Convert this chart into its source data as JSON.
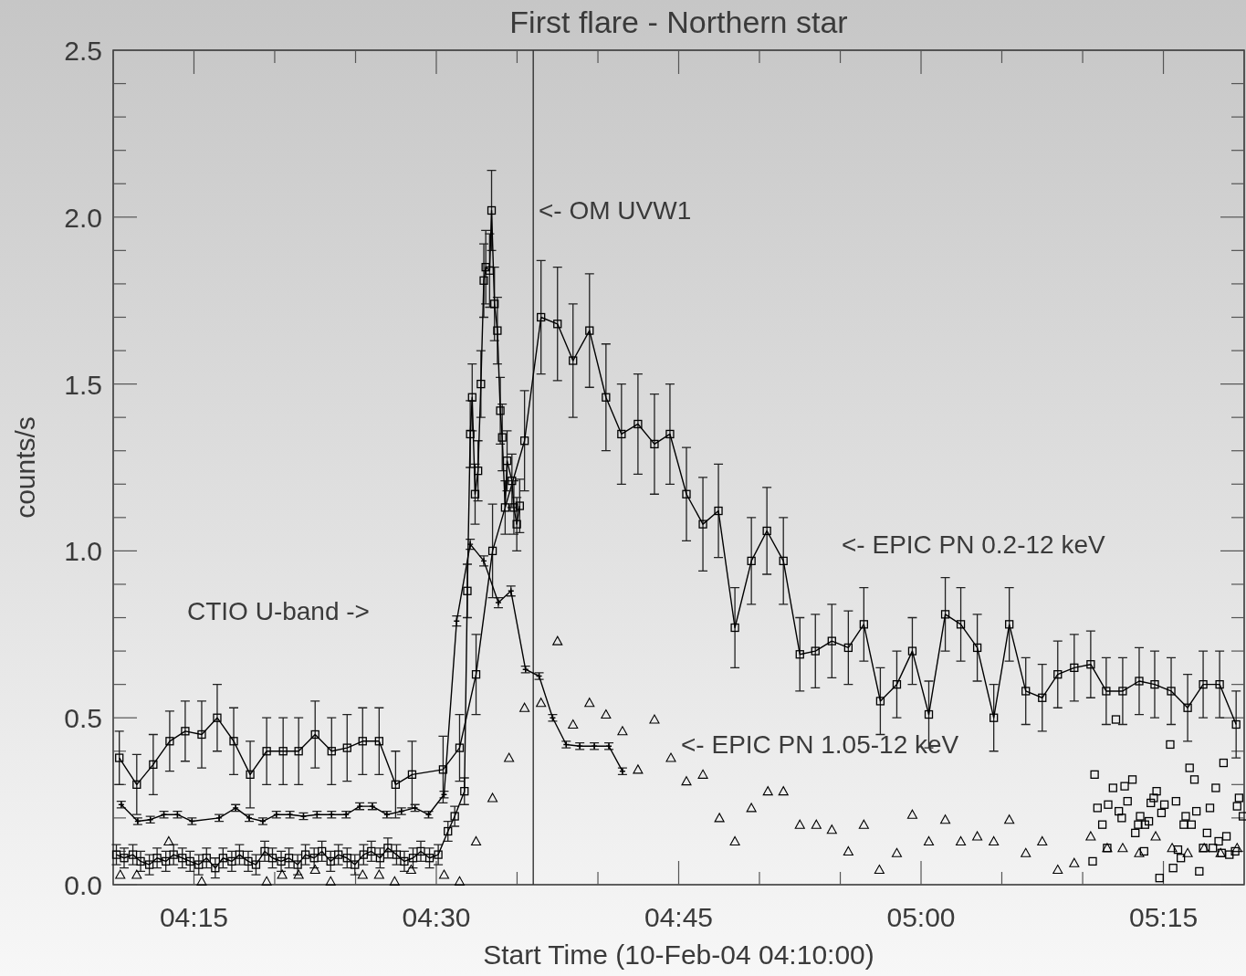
{
  "chart_data": {
    "type": "line",
    "title": "First flare - Northern star",
    "xlabel": "Start Time (10-Feb-04 04:10:00)",
    "ylabel": "counts/s",
    "xlim": [
      4.1667,
      5.3333
    ],
    "ylim": [
      0,
      2.5
    ],
    "xticks": [
      {
        "value": 4.25,
        "label": "04:15"
      },
      {
        "value": 4.5,
        "label": "04:30"
      },
      {
        "value": 4.75,
        "label": "04:45"
      },
      {
        "value": 5.0,
        "label": "05:00"
      },
      {
        "value": 5.25,
        "label": "05:15"
      },
      {
        "value": 4.3333,
        "label": null
      },
      {
        "value": 4.4167,
        "label": null
      },
      {
        "value": 4.5833,
        "label": null
      },
      {
        "value": 4.6667,
        "label": null
      },
      {
        "value": 4.8333,
        "label": null
      },
      {
        "value": 4.9167,
        "label": null
      },
      {
        "value": 5.0833,
        "label": null
      },
      {
        "value": 5.1667,
        "label": null
      }
    ],
    "yticks": [
      {
        "value": 0,
        "label": "0.0"
      },
      0.5,
      {
        "value": 1,
        "label": "1.0"
      },
      1.5,
      {
        "value": 2,
        "label": "2.0"
      },
      2.5,
      {
        "value": 0.1,
        "label": null
      },
      {
        "value": 0.2,
        "label": null
      },
      {
        "value": 0.3,
        "label": null
      },
      {
        "value": 0.4,
        "label": null
      },
      {
        "value": 0.6,
        "label": null
      },
      {
        "value": 0.7,
        "label": null
      },
      {
        "value": 0.8,
        "label": null
      },
      {
        "value": 0.9,
        "label": null
      },
      {
        "value": 1.1,
        "label": null
      },
      {
        "value": 1.2,
        "label": null
      },
      {
        "value": 1.3,
        "label": null
      },
      {
        "value": 1.4,
        "label": null
      },
      {
        "value": 1.6,
        "label": null
      },
      {
        "value": 1.7,
        "label": null
      },
      {
        "value": 1.8,
        "label": null
      },
      {
        "value": 1.9,
        "label": null
      },
      {
        "value": 2.1,
        "label": null
      },
      {
        "value": 2.2,
        "label": null
      },
      {
        "value": 2.3,
        "label": null
      },
      {
        "value": 2.4,
        "label": null
      }
    ],
    "grid": false,
    "ref_lines": [
      {
        "axis": "x",
        "value": 4.6,
        "label": null,
        "color": "#333333"
      }
    ],
    "annotations": [
      "<- OM UVW1",
      "<- EPIC PN 0.2-12 keV",
      "<- EPIC PN 1.05-12 keV",
      "CTIO U-band ->"
    ],
    "series": [
      {
        "type": "line",
        "marker": "square",
        "color": "#000000",
        "x": [
          4.173,
          4.191,
          4.208,
          4.225,
          4.241,
          4.258,
          4.274,
          4.291,
          4.308,
          4.325,
          4.342,
          4.358,
          4.375,
          4.392,
          4.408,
          4.424,
          4.441,
          4.458,
          4.475,
          4.507,
          4.524,
          4.541,
          4.558,
          4.591,
          4.608,
          4.625,
          4.641,
          4.658,
          4.675,
          4.691,
          4.708,
          4.725,
          4.741,
          4.758,
          4.775,
          4.791,
          4.808,
          4.825,
          4.841,
          4.858,
          4.875,
          4.891,
          4.908,
          4.925,
          4.941,
          4.958,
          4.975,
          4.991,
          5.008,
          5.025,
          5.041,
          5.058,
          5.075,
          5.091,
          5.108,
          5.125,
          5.141,
          5.158,
          5.175,
          5.191,
          5.208,
          5.225,
          5.241,
          5.258,
          5.275,
          5.291,
          5.308,
          5.325
        ],
        "values": [
          0.38,
          0.3,
          0.36,
          0.43,
          0.46,
          0.45,
          0.5,
          0.43,
          0.33,
          0.4,
          0.4,
          0.4,
          0.45,
          0.4,
          0.41,
          0.43,
          0.43,
          0.3,
          0.33,
          0.345,
          0.41,
          0.63,
          1.0,
          1.33,
          1.7,
          1.68,
          1.57,
          1.66,
          1.46,
          1.35,
          1.38,
          1.32,
          1.35,
          1.17,
          1.08,
          1.12,
          0.77,
          0.97,
          1.06,
          0.97,
          0.69,
          0.7,
          0.73,
          0.71,
          0.78,
          0.55,
          0.6,
          0.7,
          0.51,
          0.81,
          0.78,
          0.71,
          0.5,
          0.78,
          0.58,
          0.56,
          0.63,
          0.65,
          0.66,
          0.58,
          0.58,
          0.61,
          0.6,
          0.58,
          0.53,
          0.6,
          0.6,
          0.48
        ],
        "errors": [
          0.08,
          0.09,
          0.09,
          0.09,
          0.09,
          0.1,
          0.1,
          0.1,
          0.1,
          0.1,
          0.1,
          0.1,
          0.1,
          0.1,
          0.1,
          0.1,
          0.1,
          0.1,
          0.1,
          0.1,
          0.1,
          0.12,
          0.14,
          0.15,
          0.17,
          0.17,
          0.17,
          0.17,
          0.16,
          0.15,
          0.15,
          0.15,
          0.15,
          0.14,
          0.14,
          0.14,
          0.12,
          0.13,
          0.13,
          0.13,
          0.11,
          0.11,
          0.11,
          0.11,
          0.11,
          0.1,
          0.1,
          0.1,
          0.1,
          0.11,
          0.11,
          0.1,
          0.1,
          0.11,
          0.1,
          0.1,
          0.1,
          0.1,
          0.1,
          0.1,
          0.1,
          0.1,
          0.1,
          0.1,
          0.1,
          0.1,
          0.1,
          0.1
        ]
      },
      {
        "type": "line",
        "marker": "cross",
        "color": "#000000",
        "x": [
          4.175,
          4.192,
          4.205,
          4.219,
          4.233,
          4.248,
          4.276,
          4.293,
          4.307,
          4.321,
          4.335,
          4.349,
          4.363,
          4.377,
          4.392,
          4.407,
          4.421,
          4.434,
          4.449,
          4.464,
          4.478,
          4.492,
          4.508,
          4.521,
          4.535,
          4.549,
          4.564,
          4.577,
          4.592,
          4.606,
          4.62,
          4.634,
          4.648,
          4.663,
          4.678,
          4.692
        ],
        "values": [
          0.24,
          0.19,
          0.195,
          0.21,
          0.21,
          0.19,
          0.2,
          0.23,
          0.2,
          0.19,
          0.21,
          0.21,
          0.205,
          0.21,
          0.21,
          0.21,
          0.235,
          0.235,
          0.21,
          0.22,
          0.23,
          0.21,
          0.27,
          0.79,
          1.02,
          0.97,
          0.845,
          0.88,
          0.645,
          0.625,
          0.5,
          0.42,
          0.415,
          0.415,
          0.415,
          0.34
        ],
        "errors": [
          0.01,
          0.01,
          0.01,
          0.01,
          0.01,
          0.01,
          0.01,
          0.01,
          0.01,
          0.01,
          0.01,
          0.01,
          0.01,
          0.01,
          0.01,
          0.01,
          0.01,
          0.01,
          0.01,
          0.01,
          0.01,
          0.01,
          0.01,
          0.015,
          0.015,
          0.015,
          0.015,
          0.015,
          0.01,
          0.01,
          0.01,
          0.01,
          0.01,
          0.01,
          0.01,
          0.01
        ]
      },
      {
        "type": "line",
        "marker": "square",
        "color": "#000000",
        "x": [
          4.17,
          4.178,
          4.187,
          4.195,
          4.204,
          4.212,
          4.221,
          4.229,
          4.238,
          4.246,
          4.255,
          4.263,
          4.272,
          4.28,
          4.289,
          4.297,
          4.306,
          4.314,
          4.323,
          4.331,
          4.34,
          4.348,
          4.357,
          4.365,
          4.374,
          4.382,
          4.391,
          4.399,
          4.408,
          4.416,
          4.425,
          4.433,
          4.442,
          4.45,
          4.459,
          4.467,
          4.476,
          4.484,
          4.493,
          4.502,
          4.512,
          4.519,
          4.529,
          4.532,
          4.535,
          4.537,
          4.54,
          4.543,
          4.546,
          4.549,
          4.551,
          4.555,
          4.557,
          4.56,
          4.563,
          4.566,
          4.568,
          4.571,
          4.573,
          4.578,
          4.58,
          4.583,
          4.586
        ],
        "values": [
          0.09,
          0.08,
          0.09,
          0.07,
          0.06,
          0.08,
          0.07,
          0.09,
          0.08,
          0.07,
          0.06,
          0.08,
          0.05,
          0.08,
          0.07,
          0.09,
          0.07,
          0.06,
          0.1,
          0.08,
          0.07,
          0.08,
          0.06,
          0.09,
          0.08,
          0.1,
          0.07,
          0.09,
          0.08,
          0.06,
          0.09,
          0.1,
          0.08,
          0.11,
          0.09,
          0.07,
          0.08,
          0.1,
          0.08,
          0.09,
          0.16,
          0.205,
          0.28,
          0.88,
          1.35,
          1.46,
          1.17,
          1.24,
          1.5,
          1.81,
          1.85,
          1.84,
          2.02,
          1.74,
          1.66,
          1.42,
          1.34,
          1.13,
          1.27,
          1.21,
          1.13,
          1.08,
          1.135
        ],
        "errors": [
          0.03,
          0.03,
          0.03,
          0.03,
          0.03,
          0.03,
          0.03,
          0.03,
          0.03,
          0.03,
          0.03,
          0.03,
          0.03,
          0.03,
          0.03,
          0.03,
          0.03,
          0.03,
          0.03,
          0.03,
          0.03,
          0.03,
          0.03,
          0.03,
          0.03,
          0.03,
          0.03,
          0.03,
          0.03,
          0.03,
          0.03,
          0.03,
          0.03,
          0.03,
          0.03,
          0.03,
          0.03,
          0.03,
          0.03,
          0.03,
          0.03,
          0.03,
          0.04,
          0.08,
          0.1,
          0.1,
          0.09,
          0.09,
          0.1,
          0.11,
          0.11,
          0.11,
          0.12,
          0.11,
          0.1,
          0.1,
          0.1,
          0.08,
          0.09,
          0.08,
          0.08,
          0.08,
          0.08
        ]
      },
      {
        "type": "scatter",
        "marker": "square",
        "color": "#000000",
        "x": [
          5.179,
          5.198,
          5.21,
          5.218,
          5.182,
          5.193,
          5.204,
          5.207,
          5.213,
          5.187,
          5.192,
          5.177,
          5.221,
          5.226,
          5.224,
          5.231,
          5.235,
          5.23,
          5.237,
          5.24,
          5.243,
          5.251,
          5.248,
          5.263,
          5.257,
          5.277,
          5.282,
          5.273,
          5.271,
          5.279,
          5.284,
          5.265,
          5.268,
          5.26,
          5.246,
          5.295,
          5.298,
          5.304,
          5.312,
          5.291,
          5.301,
          5.307,
          5.315,
          5.31,
          5.318,
          5.287,
          5.324,
          5.326,
          5.328,
          5.332,
          5.201
        ],
        "values": [
          0.33,
          0.29,
          0.295,
          0.315,
          0.23,
          0.24,
          0.22,
          0.2,
          0.25,
          0.18,
          0.11,
          0.07,
          0.155,
          0.205,
          0.18,
          0.18,
          0.19,
          0.1,
          0.245,
          0.26,
          0.28,
          0.24,
          0.215,
          0.25,
          0.42,
          0.35,
          0.315,
          0.205,
          0.18,
          0.18,
          0.22,
          0.105,
          0.08,
          0.05,
          0.02,
          0.155,
          0.23,
          0.29,
          0.365,
          0.11,
          0.11,
          0.13,
          0.145,
          0.095,
          0.09,
          0.04,
          0.1,
          0.235,
          0.26,
          0.205,
          0.495
        ]
      },
      {
        "type": "scatter",
        "marker": "triangle",
        "color": "#000000",
        "x": [
          4.174,
          4.191,
          4.224,
          4.258,
          4.325,
          4.341,
          4.358,
          4.375,
          4.391,
          4.424,
          4.441,
          4.457,
          4.474,
          4.508,
          4.524,
          4.541,
          4.558,
          4.575,
          4.591,
          4.608,
          4.625,
          4.641,
          4.658,
          4.675,
          4.692,
          4.708,
          4.725,
          4.742,
          4.758,
          4.775,
          4.792,
          4.808,
          4.825,
          4.842,
          4.858,
          4.875,
          4.892,
          4.908,
          4.925,
          4.941,
          4.957,
          4.975,
          4.991,
          5.008,
          5.025,
          5.041,
          5.058,
          5.075,
          5.091,
          5.108,
          5.125,
          5.141,
          5.158,
          5.175,
          5.192,
          5.208,
          5.225,
          5.242,
          5.259,
          5.275,
          5.292,
          5.309,
          5.326
        ],
        "values": [
          0.03,
          0.03,
          0.13,
          0.01,
          0.01,
          0.03,
          0.03,
          0.045,
          0.01,
          0.03,
          0.03,
          0.01,
          0.045,
          0.03,
          0.01,
          0.13,
          0.26,
          0.38,
          0.53,
          0.545,
          0.73,
          0.48,
          0.545,
          0.51,
          0.46,
          0.345,
          0.495,
          0.38,
          0.31,
          0.33,
          0.2,
          0.13,
          0.23,
          0.28,
          0.28,
          0.18,
          0.18,
          0.165,
          0.1,
          0.18,
          0.045,
          0.095,
          0.21,
          0.13,
          0.195,
          0.13,
          0.145,
          0.13,
          0.195,
          0.095,
          0.13,
          0.045,
          0.065,
          0.145,
          0.11,
          0.11,
          0.095,
          0.145,
          0.11,
          0.095,
          0.11,
          0.095,
          0.11
        ]
      }
    ]
  }
}
